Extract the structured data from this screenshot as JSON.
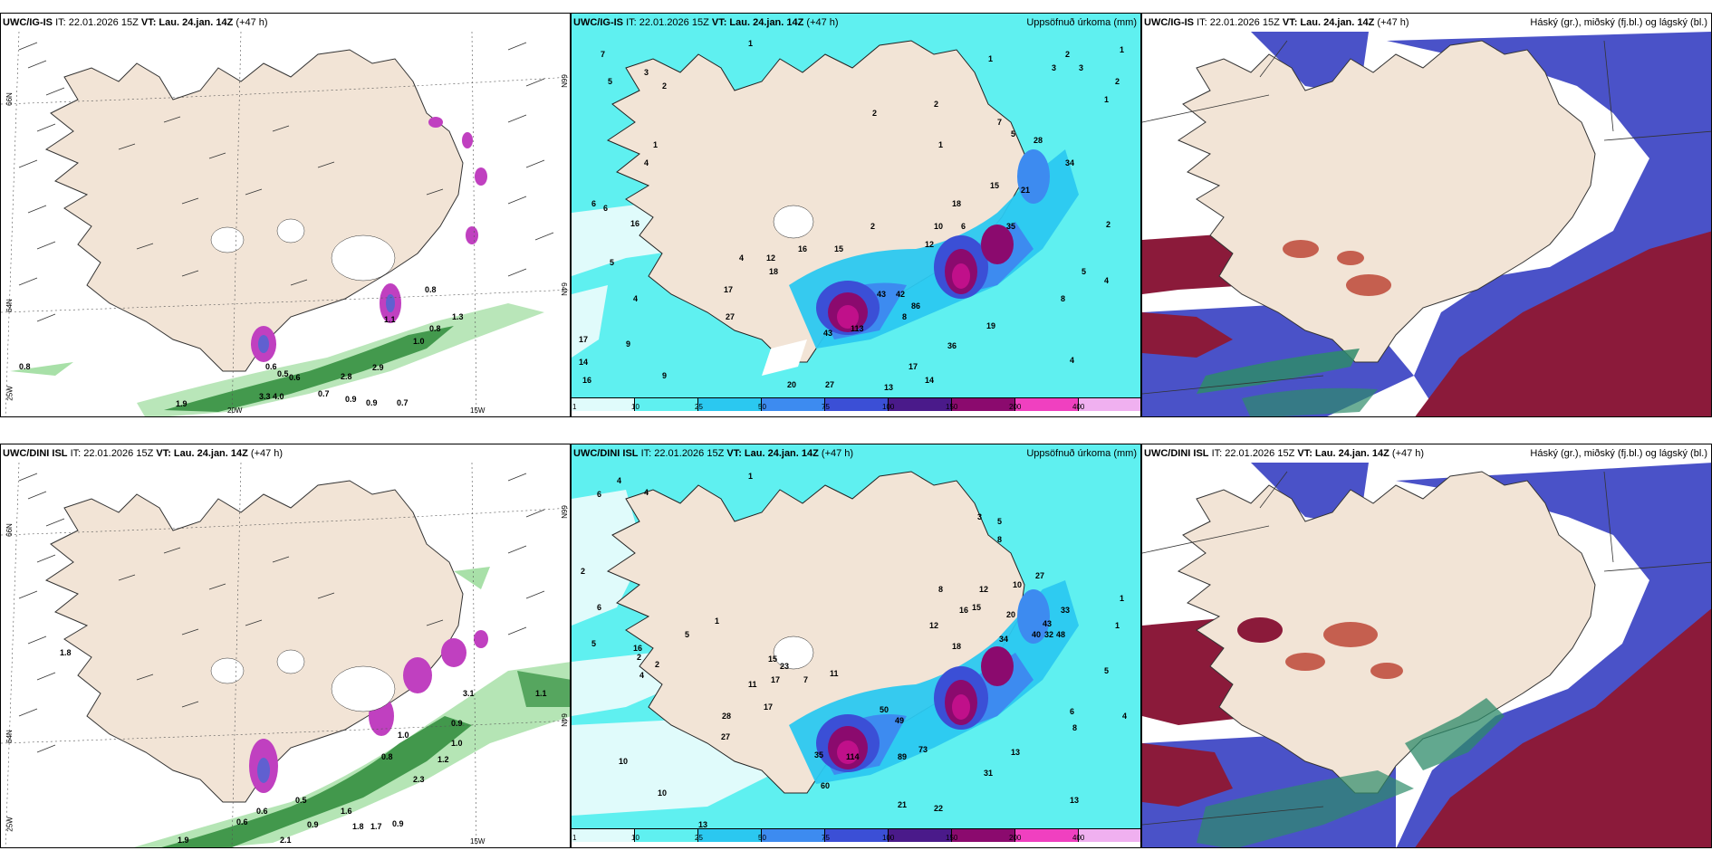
{
  "colors": {
    "land": "#f2e4d6",
    "sea": "#ffffff",
    "precip": [
      "#e0fbfb",
      "#5ff0f0",
      "#2bc8f0",
      "#3d8bf0",
      "#3b4fd6",
      "#4a1a8a",
      "#8b0a6e",
      "#c0108a",
      "#f040c0",
      "#f0b0f0"
    ],
    "snow_green": "#2e8b3a",
    "cloud_high": "#4a52c8",
    "cloud_mid": "#8b1a3a"
  },
  "panels": [
    {
      "id": "top-left",
      "header_model": "UWC/IG-IS",
      "header_it": "IT: 22.01.2026 15Z",
      "header_vt_label": "VT:",
      "header_vt": "Lau. 24.jan. 14Z",
      "header_lead": "(+47 h)",
      "right_title": "",
      "axis_labels": [
        "66N",
        "64N",
        "25W",
        "20W",
        "15W",
        "66N",
        "64N"
      ],
      "values": [
        "0.8",
        "0.6",
        "0.5",
        "0.6",
        "2.9",
        "2.8",
        "1.0",
        "0.8",
        "1.3",
        "0.7",
        "0.9",
        "0.9",
        "0.7",
        "1.9",
        "4.0",
        "3.3",
        "1.1",
        "0.8"
      ]
    },
    {
      "id": "top-middle",
      "header_model": "UWC/IG-IS",
      "header_it": "IT: 22.01.2026 15Z",
      "header_vt_label": "VT:",
      "header_vt": "Lau. 24.jan. 14Z",
      "header_lead": "(+47 h)",
      "right_title": "Uppsöfnuð úrkoma (mm)",
      "colorbar": [
        "1",
        "10",
        "25",
        "50",
        "75",
        "100",
        "150",
        "200",
        "400"
      ],
      "values": [
        "7",
        "5",
        "3",
        "1",
        "4",
        "2",
        "1",
        "6",
        "6",
        "16",
        "5",
        "4",
        "17",
        "14",
        "16",
        "9",
        "9",
        "4",
        "12",
        "18",
        "17",
        "27",
        "16",
        "15",
        "2",
        "43",
        "42",
        "86",
        "8",
        "113",
        "43",
        "17",
        "14",
        "27",
        "20",
        "36",
        "19",
        "12",
        "10",
        "6",
        "18",
        "15",
        "21",
        "35",
        "28",
        "34",
        "5",
        "4",
        "8",
        "4",
        "2",
        "1",
        "1",
        "2",
        "3",
        "1",
        "7",
        "5",
        "2",
        "3",
        "2",
        "1",
        "2",
        "13"
      ]
    },
    {
      "id": "top-right",
      "header_model": "UWC/IG-IS",
      "header_it": "IT: 22.01.2026 15Z",
      "header_vt_label": "VT:",
      "header_vt": "Lau. 24.jan. 14Z",
      "header_lead": "(+47 h)",
      "right_title": "Háský (gr.), miðský (fj.bl.) og lágský (bl.)"
    },
    {
      "id": "bottom-left",
      "header_model": "UWC/DINI ISL",
      "header_it": "IT: 22.01.2026 15Z",
      "header_vt_label": "VT:",
      "header_vt": "Lau. 24.jan. 14Z",
      "header_lead": "(+47 h)",
      "right_title": "",
      "axis_labels": [
        "66N",
        "64N",
        "25W",
        "15W",
        "66N",
        "64N"
      ],
      "values": [
        "1.8",
        "0.8",
        "0.5",
        "0.6",
        "0.9",
        "1.8",
        "1.7",
        "0.9",
        "2.3",
        "1.2",
        "1.0",
        "0.9",
        "1.0",
        "1.6",
        "0.6",
        "1.9",
        "2.1",
        "3.1",
        "1.1"
      ]
    },
    {
      "id": "bottom-middle",
      "header_model": "UWC/DINI ISL",
      "header_it": "IT: 22.01.2026 15Z",
      "header_vt_label": "VT:",
      "header_vt": "Lau. 24.jan. 14Z",
      "header_lead": "(+47 h)",
      "right_title": "Uppsöfnuð úrkoma (mm)",
      "colorbar": [
        "1",
        "10",
        "25",
        "50",
        "75",
        "100",
        "150",
        "200",
        "400"
      ],
      "values": [
        "4",
        "4",
        "1",
        "2",
        "6",
        "5",
        "5",
        "1",
        "2",
        "10",
        "2",
        "4",
        "13",
        "10",
        "16",
        "17",
        "23",
        "15",
        "11",
        "17",
        "7",
        "28",
        "27",
        "11",
        "50",
        "49",
        "73",
        "89",
        "114",
        "35",
        "60",
        "13",
        "21",
        "22",
        "31",
        "12",
        "18",
        "16",
        "15",
        "34",
        "20",
        "43",
        "40",
        "33",
        "32",
        "48",
        "27",
        "5",
        "6",
        "8",
        "4",
        "1",
        "1",
        "3",
        "5",
        "8",
        "8",
        "12",
        "10",
        "13",
        "6"
      ]
    },
    {
      "id": "bottom-right",
      "header_model": "UWC/DINI ISL",
      "header_it": "IT: 22.01.2026 15Z",
      "header_vt_label": "VT:",
      "header_vt": "Lau. 24.jan. 14Z",
      "header_lead": "(+47 h)",
      "right_title": "Háský (gr.), miðský (fj.bl.) og lágský (bl.)"
    }
  ]
}
